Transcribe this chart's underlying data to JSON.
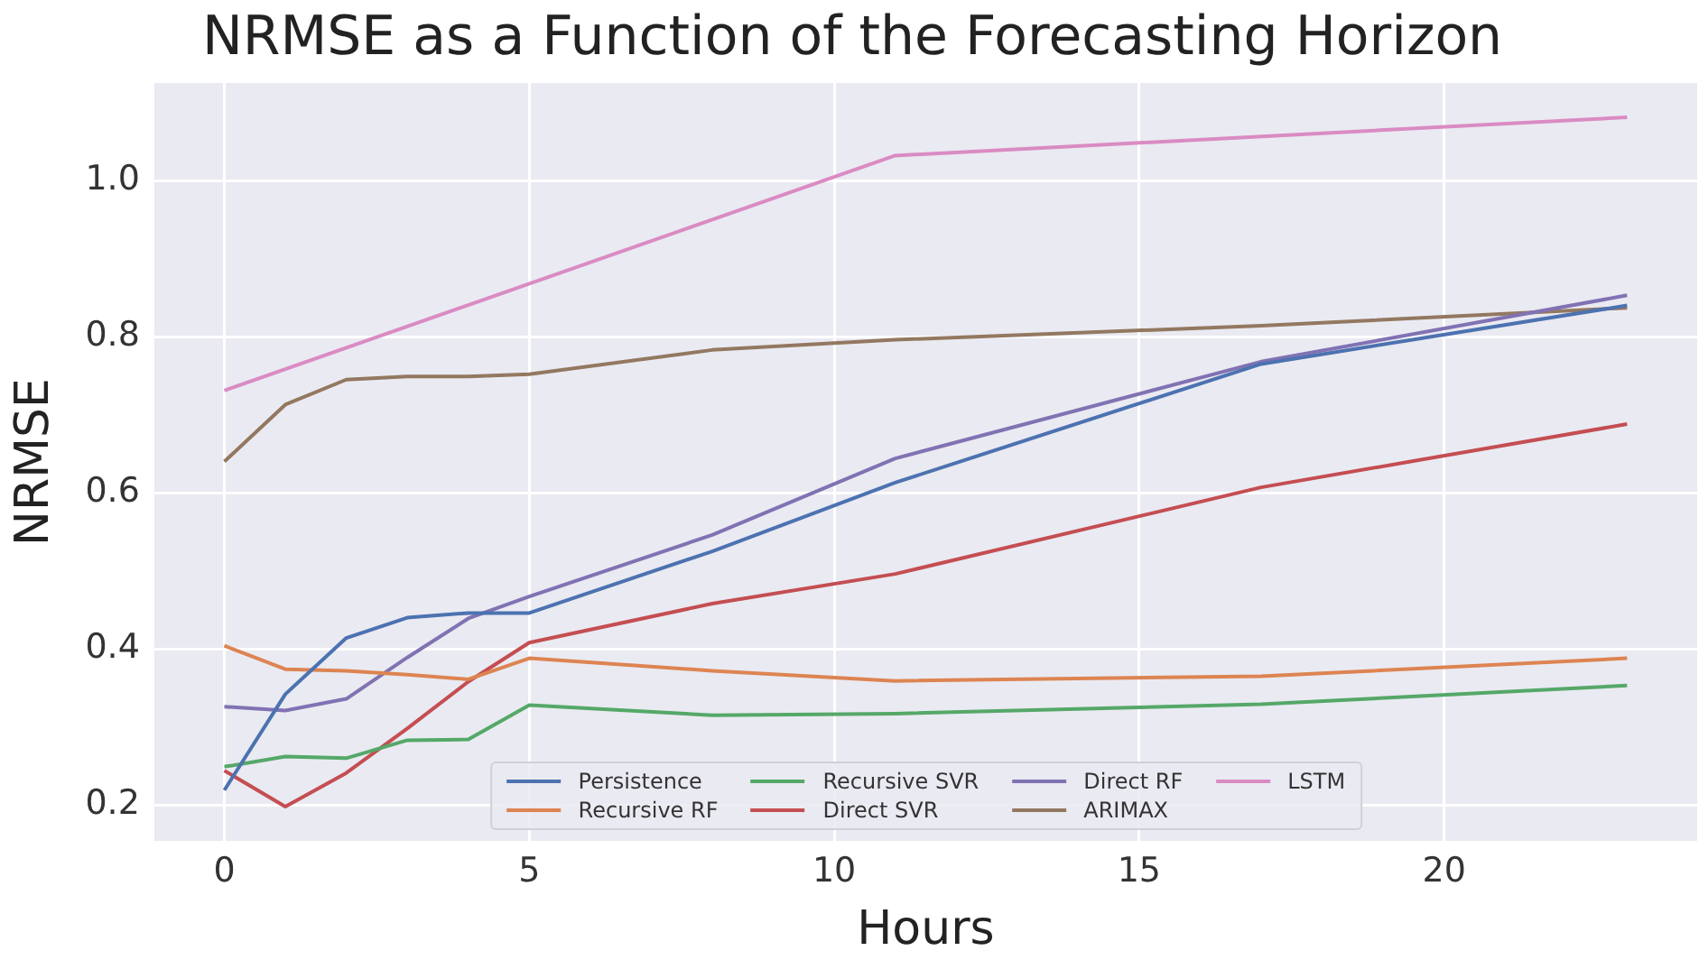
{
  "chart_data": {
    "type": "line",
    "title": "NRMSE as a Function of the Forecasting Horizon",
    "xlabel": "Hours",
    "ylabel": "NRMSE",
    "x": [
      0,
      1,
      2,
      3,
      4,
      5,
      8,
      11,
      17,
      23
    ],
    "series": [
      {
        "name": "Persistence",
        "color": "#4c72b0",
        "values": [
          0.219,
          0.342,
          0.414,
          0.44,
          0.446,
          0.446,
          0.525,
          0.613,
          0.765,
          0.84
        ]
      },
      {
        "name": "Recursive RF",
        "color": "#dd8452",
        "values": [
          0.404,
          0.374,
          0.372,
          0.367,
          0.361,
          0.388,
          0.372,
          0.359,
          0.365,
          0.388
        ]
      },
      {
        "name": "Recursive SVR",
        "color": "#55a868",
        "values": [
          0.249,
          0.262,
          0.26,
          0.283,
          0.284,
          0.328,
          0.315,
          0.317,
          0.329,
          0.353
        ]
      },
      {
        "name": "Direct SVR",
        "color": "#c44e52",
        "values": [
          0.244,
          0.198,
          0.241,
          0.298,
          0.358,
          0.408,
          0.458,
          0.496,
          0.607,
          0.688
        ]
      },
      {
        "name": "Direct RF",
        "color": "#8172b3",
        "values": [
          0.326,
          0.321,
          0.336,
          0.389,
          0.439,
          0.467,
          0.546,
          0.644,
          0.768,
          0.853
        ]
      },
      {
        "name": "ARIMAX",
        "color": "#937860",
        "values": [
          0.64,
          0.713,
          0.745,
          0.749,
          0.749,
          0.752,
          0.783,
          0.796,
          0.814,
          0.837
        ]
      },
      {
        "name": "LSTM",
        "color": "#da8bc3",
        "x": [
          0,
          11,
          23
        ],
        "values": [
          0.731,
          1.032,
          1.081
        ]
      }
    ],
    "xlim": [
      -1.15,
      24.15
    ],
    "xticks": [
      0,
      5,
      10,
      15,
      20
    ],
    "ylim": [
      0.154,
      1.125
    ],
    "yticks": [
      0.2,
      0.4,
      0.6,
      0.8,
      {
        "value": 1.0,
        "label": "1.0"
      }
    ],
    "grid": true,
    "legend": "bottom",
    "marker": "none",
    "line_style": "solid"
  }
}
